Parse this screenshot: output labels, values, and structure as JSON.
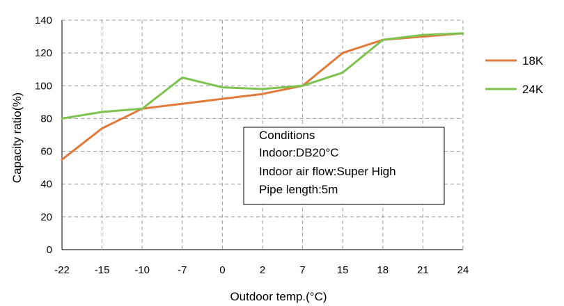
{
  "chart_data": {
    "type": "line",
    "xlabel": "Outdoor temp.(°C)",
    "ylabel": "Capacity ratio(%)",
    "categories": [
      "-22",
      "-15",
      "-10",
      "-7",
      "0",
      "2",
      "7",
      "15",
      "18",
      "21",
      "24"
    ],
    "ylim": [
      0,
      140
    ],
    "yticks": [
      0,
      20,
      40,
      60,
      80,
      100,
      120,
      140
    ],
    "grid": true,
    "legend_position": "right",
    "series": [
      {
        "name": "18K",
        "color": "#E07A3A",
        "values": [
          55,
          74,
          86,
          89,
          92,
          95,
          100,
          120,
          128,
          130,
          132
        ]
      },
      {
        "name": "24K",
        "color": "#7DC24F",
        "values": [
          80,
          84,
          86,
          105,
          99,
          98,
          100,
          108,
          128,
          131,
          132
        ]
      }
    ],
    "annotation": {
      "lines": [
        "Conditions",
        "Indoor:DB20°C",
        "Indoor air flow:Super High",
        "Pipe length:5m"
      ]
    }
  }
}
